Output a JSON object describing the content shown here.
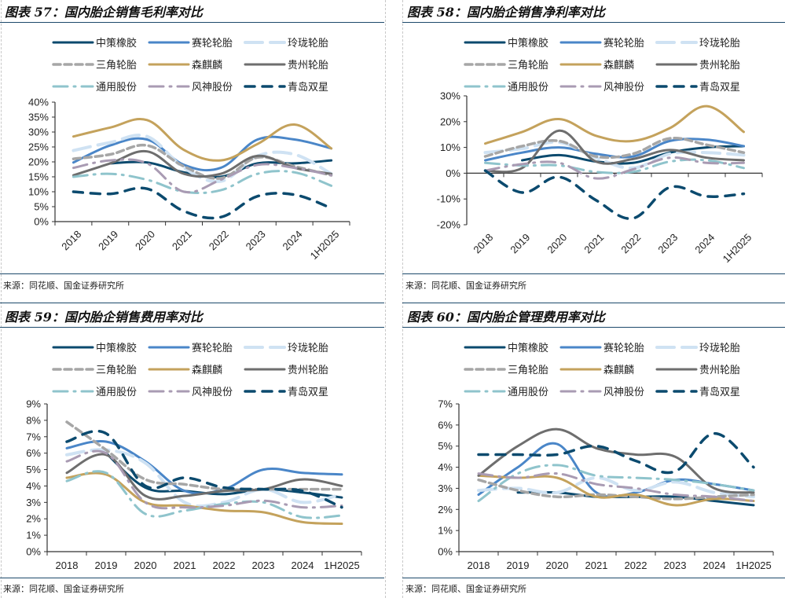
{
  "source_text": "来源：同花顺、国金证券研究所",
  "series_styles": [
    {
      "name": "中策橡胶",
      "color": "#0b4a6e",
      "dash": "",
      "width": 3
    },
    {
      "name": "赛轮轮胎",
      "color": "#4a86c8",
      "dash": "",
      "width": 3
    },
    {
      "name": "玲珑轮胎",
      "color": "#cfe2f3",
      "dash": "22 10",
      "width": 4
    },
    {
      "name": "三角轮胎",
      "color": "#a6a6a6",
      "dash": "9 5",
      "width": 3.5
    },
    {
      "name": "森麒麟",
      "color": "#c4a25c",
      "dash": "",
      "width": 3
    },
    {
      "name": "贵州轮胎",
      "color": "#6e6e6e",
      "dash": "",
      "width": 3
    },
    {
      "name": "通用股份",
      "color": "#8fc4cc",
      "dash": "18 8 2 8",
      "width": 3
    },
    {
      "name": "风神股份",
      "color": "#a99bb3",
      "dash": "18 8 2 8",
      "width": 3
    },
    {
      "name": "青岛双星",
      "color": "#0b4a6e",
      "dash": "12 10",
      "width": 3.5
    }
  ],
  "chart_data": [
    {
      "id": "fig57",
      "type": "line",
      "title": "图表 57：国内胎企销售毛利率对比",
      "xlabel": "",
      "ylabel": "",
      "categories": [
        "2018",
        "2019",
        "2020",
        "2021",
        "2022",
        "2023",
        "2024",
        "1H2025"
      ],
      "x_tick_rotation": "rotated",
      "ylim": [
        0,
        40
      ],
      "yticks": [
        0,
        5,
        10,
        15,
        20,
        25,
        30,
        35,
        40
      ],
      "ytick_labels": [
        "0%",
        "5%",
        "10%",
        "15%",
        "20%",
        "25%",
        "30%",
        "35%",
        "40%"
      ],
      "legend_position": "top",
      "series": [
        {
          "name": "中策橡胶",
          "values": [
            null,
            19.5,
            19.8,
            16.5,
            15.0,
            19.5,
            19.5,
            20.5
          ]
        },
        {
          "name": "赛轮轮胎",
          "values": [
            19.8,
            25.5,
            27.5,
            19.0,
            18.0,
            27.5,
            27.5,
            24.5
          ]
        },
        {
          "name": "玲珑轮胎",
          "values": [
            23.8,
            26.5,
            28.5,
            18.0,
            13.5,
            22.0,
            22.5,
            16.0
          ]
        },
        {
          "name": "三角轮胎",
          "values": [
            21.0,
            22.5,
            25.5,
            18.5,
            14.5,
            21.5,
            18.5,
            15.5
          ]
        },
        {
          "name": "森麒麟",
          "values": [
            28.5,
            31.5,
            34.0,
            24.0,
            20.5,
            26.0,
            32.5,
            24.5
          ]
        },
        {
          "name": "贵州轮胎",
          "values": [
            15.5,
            19.5,
            23.5,
            16.0,
            16.0,
            22.0,
            18.0,
            16.0
          ]
        },
        {
          "name": "通用股份",
          "values": [
            15.0,
            16.0,
            14.0,
            10.0,
            10.5,
            16.0,
            16.5,
            12.0
          ]
        },
        {
          "name": "风神股份",
          "values": [
            18.0,
            20.5,
            19.5,
            10.0,
            14.0,
            19.0,
            18.0,
            15.5
          ]
        },
        {
          "name": "青岛双星",
          "values": [
            10.0,
            9.3,
            11.0,
            3.5,
            1.5,
            8.5,
            9.0,
            4.5
          ]
        }
      ]
    },
    {
      "id": "fig58",
      "type": "line",
      "title": "图表 58：国内胎企销售净利率对比",
      "xlabel": "",
      "ylabel": "",
      "categories": [
        "2018",
        "2019",
        "2020",
        "2021",
        "2022",
        "2023",
        "2024",
        "1H2025"
      ],
      "x_tick_rotation": "rotated",
      "ylim": [
        -20,
        30
      ],
      "yticks": [
        -20,
        -10,
        0,
        10,
        20,
        30
      ],
      "ytick_labels": [
        "-20%",
        "-10%",
        "0%",
        "10%",
        "20%",
        "30%"
      ],
      "legend_position": "top",
      "series": [
        {
          "name": "中策橡胶",
          "values": [
            null,
            5.0,
            7.0,
            4.5,
            4.0,
            8.0,
            10.0,
            10.5
          ]
        },
        {
          "name": "赛轮轮胎",
          "values": [
            5.0,
            8.0,
            10.0,
            7.5,
            6.5,
            12.5,
            13.0,
            10.5
          ]
        },
        {
          "name": "玲珑轮胎",
          "values": [
            8.0,
            9.5,
            12.0,
            6.0,
            2.0,
            7.5,
            8.0,
            7.0
          ]
        },
        {
          "name": "三角轮胎",
          "values": [
            6.5,
            10.5,
            12.5,
            6.5,
            7.5,
            13.5,
            11.0,
            8.0
          ]
        },
        {
          "name": "森麒麟",
          "values": [
            11.5,
            16.0,
            21.0,
            14.5,
            12.5,
            17.5,
            26.0,
            16.0
          ]
        },
        {
          "name": "贵州轮胎",
          "values": [
            1.0,
            2.0,
            16.5,
            4.5,
            5.5,
            9.0,
            6.0,
            5.0
          ]
        },
        {
          "name": "通用股份",
          "values": [
            4.0,
            3.0,
            3.0,
            0.5,
            0.5,
            4.5,
            5.0,
            2.0
          ]
        },
        {
          "name": "风神股份",
          "values": [
            1.0,
            3.5,
            4.0,
            -2.0,
            1.5,
            6.0,
            4.0,
            4.0
          ]
        },
        {
          "name": "青岛双星",
          "values": [
            1.0,
            -7.5,
            -1.5,
            -10.5,
            -17.5,
            -5.5,
            -9.0,
            -8.0
          ]
        }
      ]
    },
    {
      "id": "fig59",
      "type": "line",
      "title": "图表 59：国内胎企销售费用率对比",
      "xlabel": "",
      "ylabel": "",
      "categories": [
        "2018",
        "2019",
        "2020",
        "2021",
        "2022",
        "2023",
        "2024",
        "1H2025"
      ],
      "x_tick_rotation": "horizontal",
      "ylim": [
        0,
        9
      ],
      "yticks": [
        0,
        1,
        2,
        3,
        4,
        5,
        6,
        7,
        8,
        9
      ],
      "ytick_labels": [
        "0%",
        "1%",
        "2%",
        "3%",
        "4%",
        "5%",
        "6%",
        "7%",
        "8%",
        "9%"
      ],
      "legend_position": "top",
      "series": [
        {
          "name": "中策橡胶",
          "values": [
            null,
            6.0,
            3.9,
            3.7,
            3.5,
            3.8,
            3.6,
            3.3
          ]
        },
        {
          "name": "赛轮轮胎",
          "values": [
            6.3,
            6.7,
            5.5,
            3.7,
            3.8,
            5.0,
            4.8,
            4.7
          ]
        },
        {
          "name": "玲珑轮胎",
          "values": [
            5.9,
            6.2,
            5.4,
            3.0,
            3.0,
            3.8,
            3.0,
            3.5
          ]
        },
        {
          "name": "三角轮胎",
          "values": [
            7.9,
            6.2,
            4.4,
            4.1,
            3.8,
            3.8,
            3.8,
            3.8
          ]
        },
        {
          "name": "森麒麟",
          "values": [
            4.5,
            4.7,
            3.0,
            2.8,
            2.5,
            2.4,
            1.8,
            1.7
          ]
        },
        {
          "name": "贵州轮胎",
          "values": [
            4.8,
            5.9,
            3.4,
            3.4,
            3.7,
            3.8,
            4.4,
            4.0
          ]
        },
        {
          "name": "通用股份",
          "values": [
            4.3,
            4.8,
            2.3,
            2.5,
            2.9,
            3.0,
            2.1,
            2.2
          ]
        },
        {
          "name": "风神股份",
          "values": [
            5.5,
            6.0,
            3.0,
            2.7,
            2.8,
            3.1,
            2.7,
            2.8
          ]
        },
        {
          "name": "青岛双星",
          "values": [
            6.7,
            7.2,
            4.0,
            4.5,
            3.9,
            3.8,
            3.7,
            2.7
          ]
        }
      ]
    },
    {
      "id": "fig60",
      "type": "line",
      "title": "图表 60：国内胎企管理费用率对比",
      "xlabel": "",
      "ylabel": "",
      "categories": [
        "2018",
        "2019",
        "2020",
        "2021",
        "2022",
        "2023",
        "2024",
        "1H2025"
      ],
      "x_tick_rotation": "horizontal",
      "ylim": [
        0,
        7
      ],
      "yticks": [
        0,
        1,
        2,
        3,
        4,
        5,
        6,
        7
      ],
      "ytick_labels": [
        "0%",
        "1%",
        "2%",
        "3%",
        "4%",
        "5%",
        "6%",
        "7%"
      ],
      "legend_position": "top",
      "series": [
        {
          "name": "中策橡胶",
          "values": [
            null,
            2.8,
            2.8,
            2.6,
            2.6,
            2.6,
            2.4,
            2.2
          ]
        },
        {
          "name": "赛轮轮胎",
          "values": [
            2.7,
            4.0,
            5.1,
            2.8,
            2.8,
            3.4,
            3.2,
            2.9
          ]
        },
        {
          "name": "玲珑轮胎",
          "values": [
            2.9,
            3.0,
            2.8,
            3.5,
            2.9,
            3.3,
            2.8,
            2.6
          ]
        },
        {
          "name": "三角轮胎",
          "values": [
            3.4,
            2.9,
            2.6,
            2.7,
            2.6,
            2.5,
            2.6,
            2.7
          ]
        },
        {
          "name": "森麒麟",
          "values": [
            3.6,
            3.5,
            3.5,
            2.6,
            2.7,
            2.2,
            2.5,
            2.4
          ]
        },
        {
          "name": "贵州轮胎",
          "values": [
            3.6,
            5.0,
            5.8,
            4.9,
            4.6,
            4.5,
            3.0,
            2.8
          ]
        },
        {
          "name": "通用股份",
          "values": [
            2.4,
            3.7,
            4.1,
            3.6,
            3.5,
            3.4,
            3.2,
            2.9
          ]
        },
        {
          "name": "风神股份",
          "values": [
            3.7,
            3.5,
            3.7,
            3.2,
            3.0,
            2.7,
            2.6,
            2.4
          ]
        },
        {
          "name": "青岛双星",
          "values": [
            4.6,
            4.6,
            4.6,
            5.0,
            4.3,
            3.8,
            5.6,
            4.0
          ]
        }
      ]
    }
  ]
}
